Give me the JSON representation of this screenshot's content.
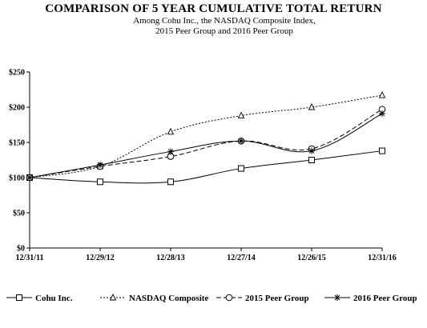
{
  "chart_data": {
    "type": "line",
    "title": "COMPARISON OF 5 YEAR CUMULATIVE  TOTAL RETURN",
    "subtitle_lines": [
      "Among Cohu Inc., the NASDAQ Composite Index,",
      "2015 Peer Group and 2016 Peer Group"
    ],
    "categories": [
      "12/31/11",
      "12/29/12",
      "12/28/13",
      "12/27/14",
      "12/26/15",
      "12/31/16"
    ],
    "y_ticks": [
      "$0",
      "$50",
      "$100",
      "$150",
      "$200",
      "$250"
    ],
    "ylim": [
      0,
      250
    ],
    "grid": false,
    "legend_position": "bottom",
    "series": [
      {
        "name": "Cohu Inc.",
        "values": [
          100,
          94,
          94,
          113,
          125,
          138
        ],
        "line_style": "solid",
        "marker": "square",
        "color": "#000000"
      },
      {
        "name": "NASDAQ Composite",
        "values": [
          100,
          116,
          165,
          188,
          200,
          217
        ],
        "line_style": "dotted",
        "marker": "triangle",
        "color": "#000000"
      },
      {
        "name": "2015 Peer Group",
        "values": [
          100,
          116,
          130,
          152,
          141,
          197
        ],
        "line_style": "dashed",
        "marker": "circle",
        "color": "#000000"
      },
      {
        "name": "2016 Peer Group",
        "values": [
          100,
          118,
          137,
          152,
          138,
          191
        ],
        "line_style": "solid",
        "marker": "asterisk",
        "color": "#000000"
      }
    ]
  }
}
